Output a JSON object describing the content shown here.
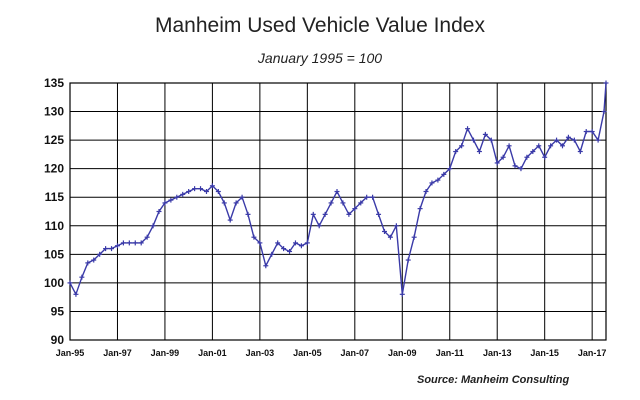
{
  "chart_data": {
    "type": "line",
    "title": "Manheim Used Vehicle Value Index",
    "subtitle": "January 1995 = 100",
    "source": "Source: Manheim Consulting",
    "xlabel": "",
    "ylabel": "",
    "ylim": [
      90,
      135
    ],
    "yticks": [
      "90",
      "95",
      "100",
      "105",
      "110",
      "115",
      "120",
      "125",
      "130",
      "135"
    ],
    "xlim": [
      "1995-01",
      "2017-08"
    ],
    "xticks": [
      "Jan-95",
      "Jan-97",
      "Jan-99",
      "Jan-01",
      "Jan-03",
      "Jan-05",
      "Jan-07",
      "Jan-09",
      "Jan-11",
      "Jan-13",
      "Jan-15",
      "Jan-17"
    ],
    "grid": true,
    "legend": "none",
    "colors": {
      "series": "#3a3aa8",
      "grid": "#000000",
      "axis": "#000000"
    },
    "series": [
      {
        "x": [
          "1995-01",
          "1995-04",
          "1995-07",
          "1995-10",
          "1996-01",
          "1996-04",
          "1996-07",
          "1996-10",
          "1997-01",
          "1997-04",
          "1997-07",
          "1997-10",
          "1998-01",
          "1998-04",
          "1998-07",
          "1998-10",
          "1999-01",
          "1999-04",
          "1999-07",
          "1999-10",
          "2000-01",
          "2000-04",
          "2000-07",
          "2000-10",
          "2001-01",
          "2001-04",
          "2001-07",
          "2001-10",
          "2002-01",
          "2002-04",
          "2002-07",
          "2002-10",
          "2003-01",
          "2003-04",
          "2003-07",
          "2003-10",
          "2004-01",
          "2004-04",
          "2004-07",
          "2004-10",
          "2005-01",
          "2005-04",
          "2005-07",
          "2005-10",
          "2006-01",
          "2006-04",
          "2006-07",
          "2006-10",
          "2007-01",
          "2007-04",
          "2007-07",
          "2007-10",
          "2008-01",
          "2008-04",
          "2008-07",
          "2008-10",
          "2009-01",
          "2009-04",
          "2009-07",
          "2009-10",
          "2010-01",
          "2010-04",
          "2010-07",
          "2010-10",
          "2011-01",
          "2011-04",
          "2011-07",
          "2011-10",
          "2012-01",
          "2012-04",
          "2012-07",
          "2012-10",
          "2013-01",
          "2013-04",
          "2013-07",
          "2013-10",
          "2014-01",
          "2014-04",
          "2014-07",
          "2014-10",
          "2015-01",
          "2015-04",
          "2015-07",
          "2015-10",
          "2016-01",
          "2016-04",
          "2016-07",
          "2016-10",
          "2017-01",
          "2017-04",
          "2017-07",
          "2017-08"
        ],
        "values": [
          100,
          98,
          101,
          103.5,
          104,
          105,
          106,
          106,
          106.5,
          107,
          107,
          107,
          107,
          108,
          110,
          112.5,
          114,
          114.5,
          115,
          115.5,
          116,
          116.5,
          116.5,
          116,
          117,
          116,
          114,
          111,
          114,
          115,
          112,
          108,
          107,
          103,
          105,
          107,
          106,
          105.5,
          107,
          106.5,
          107,
          112,
          110,
          112,
          114,
          116,
          114,
          112,
          113,
          114,
          115,
          115,
          112,
          109,
          108,
          110,
          98,
          104,
          108,
          113,
          116,
          117.5,
          118,
          119,
          120,
          123,
          124,
          127,
          125,
          123,
          126,
          125,
          121,
          122,
          124,
          120.5,
          120,
          122,
          123,
          124,
          122,
          124,
          125,
          124,
          125.5,
          125,
          123,
          126.5,
          126.5,
          125,
          130,
          135
        ]
      }
    ]
  }
}
